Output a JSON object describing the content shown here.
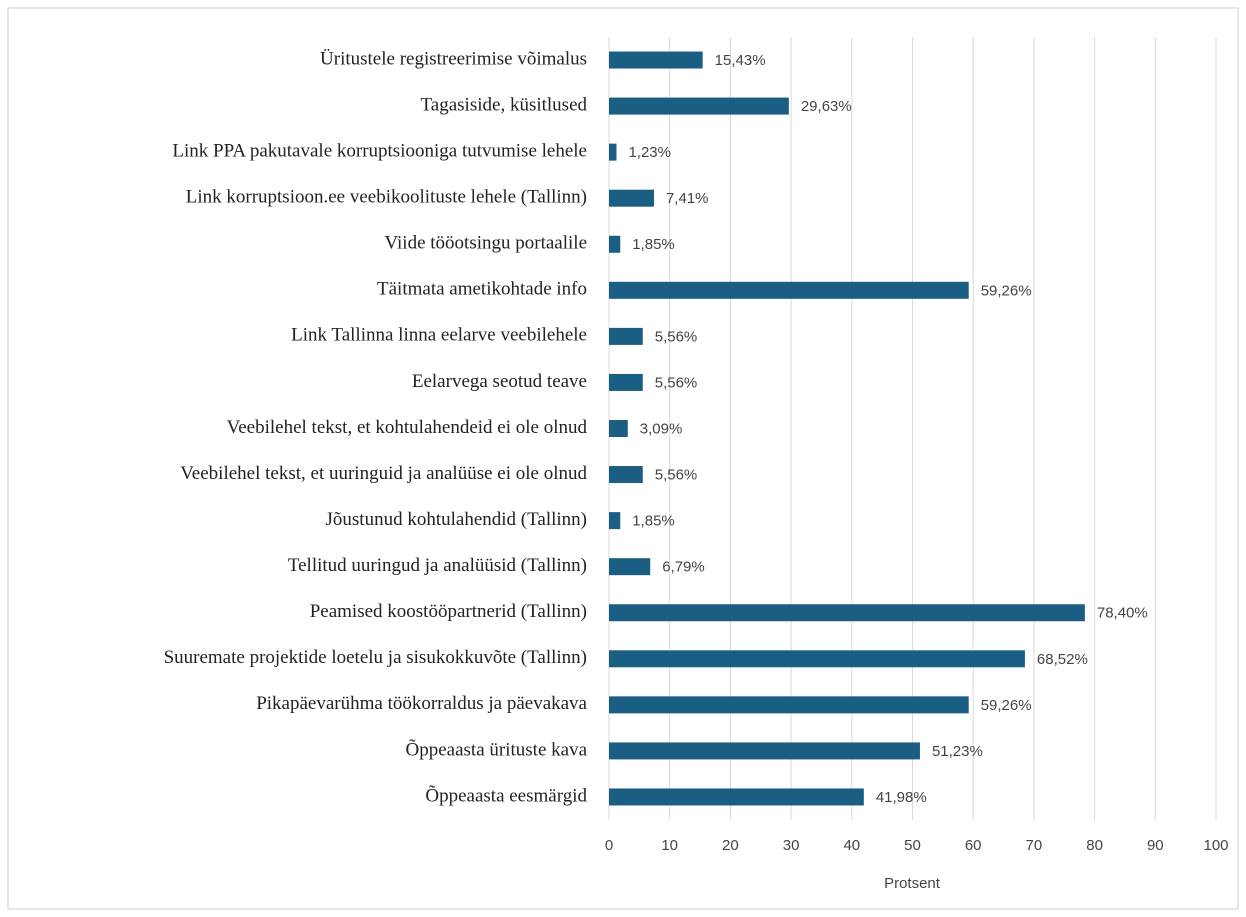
{
  "chart_data": {
    "type": "barh",
    "categories": [
      "Üritustele registreerimise võimalus",
      "Tagasiside, küsitlused",
      "Link PPA pakutavale korruptsiooniga tutvumise lehele",
      "Link korruptsioon.ee veebikoolituste lehele (Tallinn)",
      "Viide tööotsingu portaalile",
      "Täitmata ametikohtade info",
      "Link Tallinna linna eelarve veebilehele",
      "Eelarvega seotud teave",
      "Veebilehel tekst, et kohtulahendeid ei ole olnud",
      "Veebilehel tekst, et uuringuid ja analüüse ei ole olnud",
      "Jõustunud kohtulahendid (Tallinn)",
      "Tellitud uuringud ja analüüsid (Tallinn)",
      "Peamised koostööpartnerid (Tallinn)",
      "Suuremate projektide loetelu ja sisukokkuvõte (Tallinn)",
      "Pikapäevarühma töökorraldus ja päevakava",
      "Õppeaasta ürituste kava",
      "Õppeaasta eesmärgid"
    ],
    "values": [
      15.43,
      29.63,
      1.23,
      7.41,
      1.85,
      59.26,
      5.56,
      5.56,
      3.09,
      5.56,
      1.85,
      6.79,
      78.4,
      68.52,
      59.26,
      51.23,
      41.98
    ],
    "value_labels": [
      "15,43%",
      "29,63%",
      "1,23%",
      "7,41%",
      "1,85%",
      "59,26%",
      "5,56%",
      "5,56%",
      "3,09%",
      "5,56%",
      "1,85%",
      "6,79%",
      "78,40%",
      "68,52%",
      "59,26%",
      "51,23%",
      "41,98%"
    ],
    "color": "#1b5e83",
    "xlabel": "Protsent",
    "xlim": [
      0,
      100
    ],
    "xticks": [
      0,
      10,
      20,
      30,
      40,
      50,
      60,
      70,
      80,
      90,
      100
    ],
    "grid": true
  }
}
